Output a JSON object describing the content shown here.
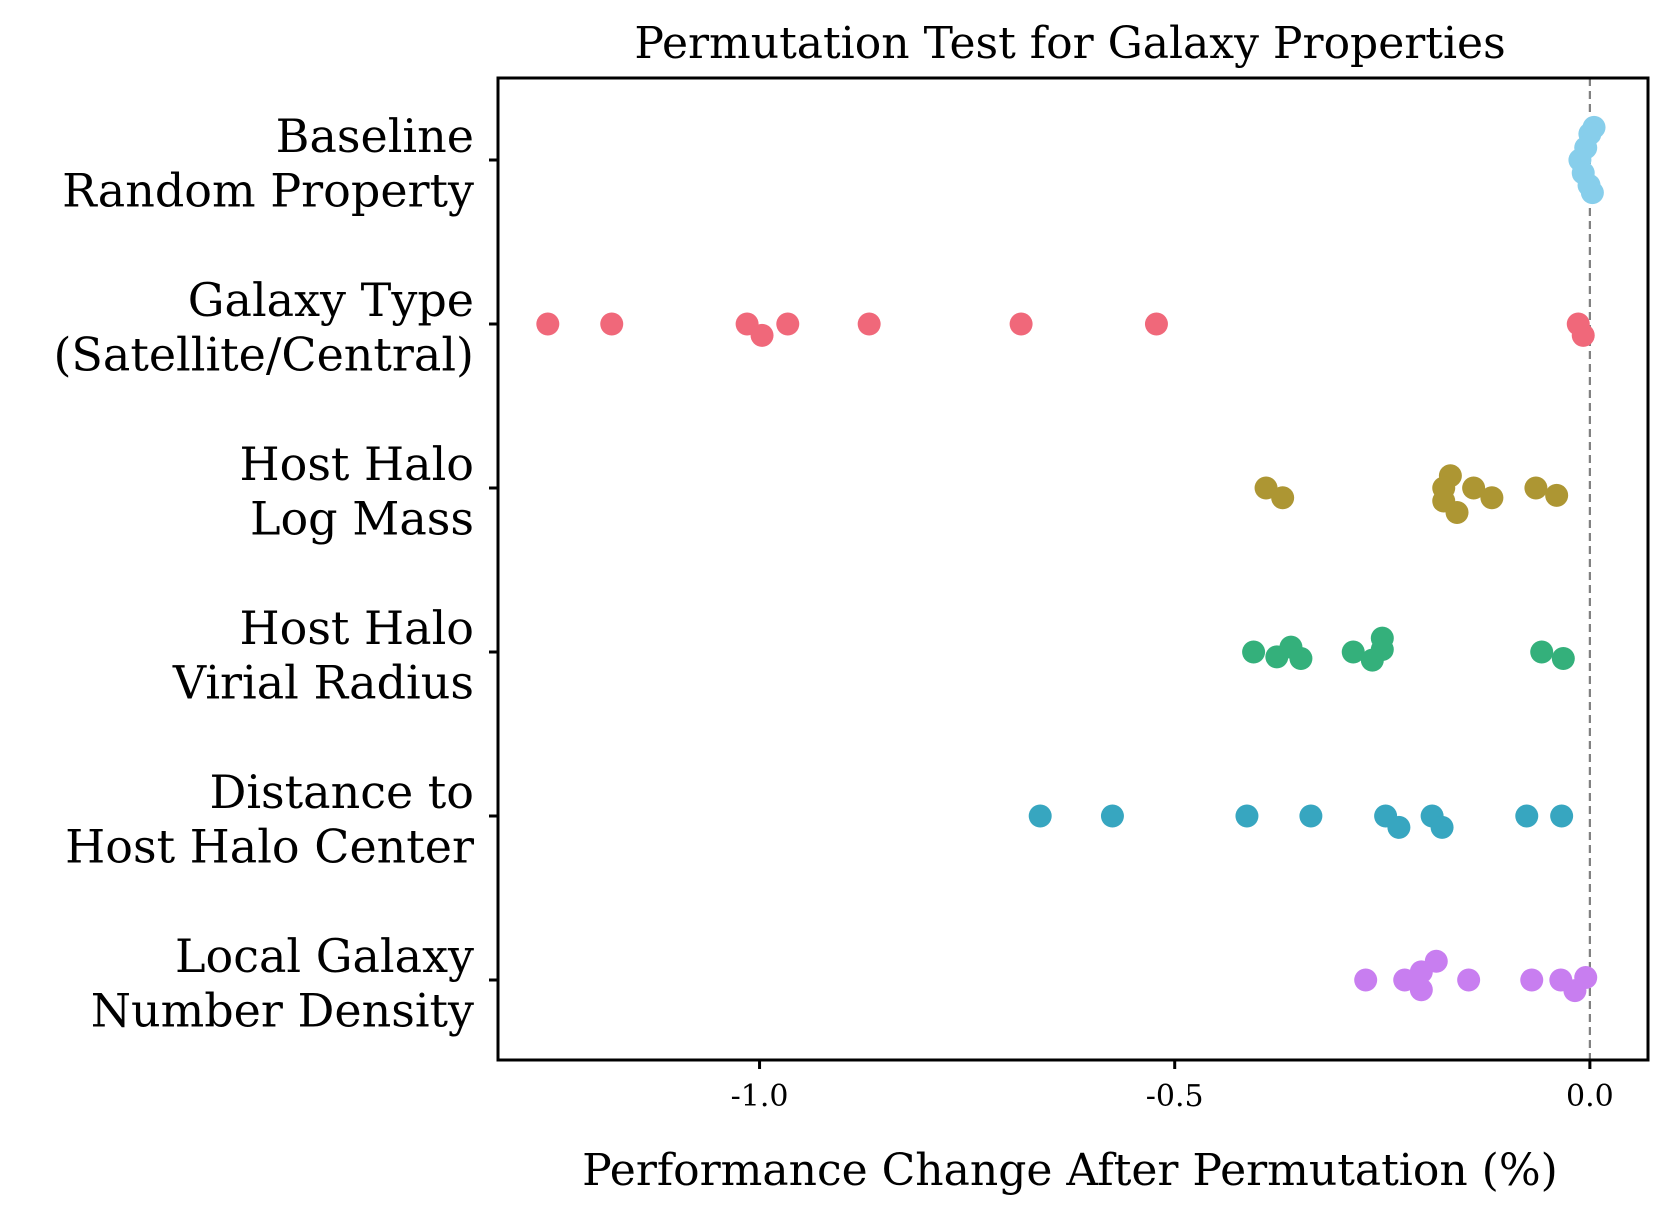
{
  "chart_data": {
    "type": "scatter",
    "subtype": "swarm",
    "title": "Permutation Test for Galaxy Properties",
    "xlabel": "Performance Change After Permutation (%)",
    "ylabel": "",
    "xlim": [
      -1.315,
      0.07
    ],
    "xticks": [
      {
        "value": -1.0,
        "label": "-1.0"
      },
      {
        "value": -0.5,
        "label": "-0.5"
      },
      {
        "value": 0.0,
        "label": "0.0"
      }
    ],
    "reference_line": {
      "x": 0.0,
      "style": "dashed",
      "color": "#808080"
    },
    "grid": false,
    "categories": [
      {
        "lines": [
          "Baseline",
          "Random Property"
        ],
        "color": "#87ceeb",
        "points": [
          {
            "x": 0.005,
            "offset": -0.4
          },
          {
            "x": 0.0,
            "offset": -0.32
          },
          {
            "x": -0.005,
            "offset": -0.15
          },
          {
            "x": -0.012,
            "offset": 0.0
          },
          {
            "x": -0.008,
            "offset": 0.16
          },
          {
            "x": -0.001,
            "offset": 0.31
          },
          {
            "x": 0.003,
            "offset": 0.4
          }
        ]
      },
      {
        "lines": [
          "Galaxy Type",
          "(Satellite/Central)"
        ],
        "color": "#f0687a",
        "points": [
          {
            "x": -1.255,
            "offset": 0.0
          },
          {
            "x": -1.178,
            "offset": 0.0
          },
          {
            "x": -1.015,
            "offset": 0.0
          },
          {
            "x": -0.997,
            "offset": 0.14
          },
          {
            "x": -0.966,
            "offset": 0.0
          },
          {
            "x": -0.868,
            "offset": 0.0
          },
          {
            "x": -0.685,
            "offset": 0.0
          },
          {
            "x": -0.522,
            "offset": 0.0
          },
          {
            "x": -0.014,
            "offset": 0.0
          },
          {
            "x": -0.008,
            "offset": 0.14
          }
        ]
      },
      {
        "lines": [
          "Host Halo",
          "Log Mass"
        ],
        "color": "#ad9633",
        "points": [
          {
            "x": -0.39,
            "offset": 0.0
          },
          {
            "x": -0.37,
            "offset": 0.12
          },
          {
            "x": -0.168,
            "offset": -0.15
          },
          {
            "x": -0.176,
            "offset": 0.0
          },
          {
            "x": -0.176,
            "offset": 0.16
          },
          {
            "x": -0.14,
            "offset": 0.0
          },
          {
            "x": -0.16,
            "offset": 0.3
          },
          {
            "x": -0.118,
            "offset": 0.12
          },
          {
            "x": -0.065,
            "offset": 0.0
          },
          {
            "x": -0.04,
            "offset": 0.09
          }
        ]
      },
      {
        "lines": [
          "Host Halo",
          "Virial Radius"
        ],
        "color": "#34b07b",
        "points": [
          {
            "x": -0.405,
            "offset": 0.0
          },
          {
            "x": -0.377,
            "offset": 0.06
          },
          {
            "x": -0.36,
            "offset": -0.06
          },
          {
            "x": -0.348,
            "offset": 0.08
          },
          {
            "x": -0.285,
            "offset": 0.0
          },
          {
            "x": -0.262,
            "offset": 0.1
          },
          {
            "x": -0.25,
            "offset": -0.17
          },
          {
            "x": -0.25,
            "offset": -0.03
          },
          {
            "x": -0.058,
            "offset": 0.0
          },
          {
            "x": -0.032,
            "offset": 0.08
          }
        ]
      },
      {
        "lines": [
          "Distance to",
          "Host Halo Center"
        ],
        "color": "#37a6c0",
        "points": [
          {
            "x": -0.662,
            "offset": 0.0
          },
          {
            "x": -0.575,
            "offset": 0.0
          },
          {
            "x": -0.413,
            "offset": 0.0
          },
          {
            "x": -0.336,
            "offset": 0.0
          },
          {
            "x": -0.246,
            "offset": 0.0
          },
          {
            "x": -0.23,
            "offset": 0.14
          },
          {
            "x": -0.19,
            "offset": 0.0
          },
          {
            "x": -0.178,
            "offset": 0.14
          },
          {
            "x": -0.076,
            "offset": 0.0
          },
          {
            "x": -0.034,
            "offset": 0.0
          }
        ]
      },
      {
        "lines": [
          "Local Galaxy",
          "Number Density"
        ],
        "color": "#c87ef0",
        "points": [
          {
            "x": -0.27,
            "offset": 0.0
          },
          {
            "x": -0.223,
            "offset": 0.0
          },
          {
            "x": -0.203,
            "offset": -0.1
          },
          {
            "x": -0.203,
            "offset": 0.12
          },
          {
            "x": -0.185,
            "offset": -0.23
          },
          {
            "x": -0.146,
            "offset": 0.0
          },
          {
            "x": -0.07,
            "offset": 0.0
          },
          {
            "x": -0.035,
            "offset": 0.0
          },
          {
            "x": -0.018,
            "offset": 0.13
          },
          {
            "x": -0.005,
            "offset": -0.03
          }
        ]
      }
    ]
  }
}
